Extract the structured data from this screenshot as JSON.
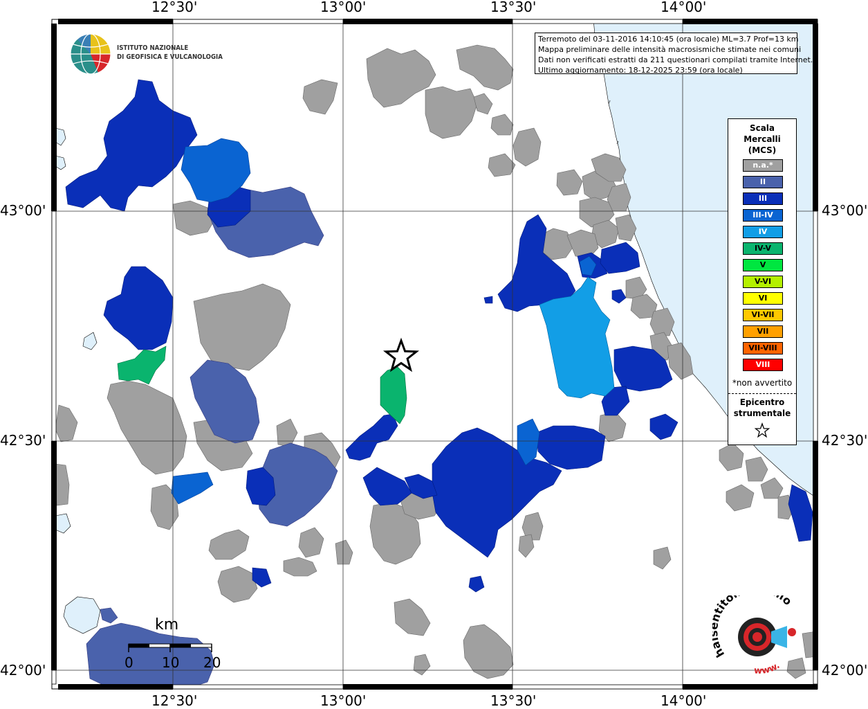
{
  "axes": {
    "lon_labels": [
      "12°30'",
      "13°00'",
      "13°30'",
      "14°00'"
    ],
    "lat_labels": [
      "43°00'",
      "42°30'",
      "42°00'"
    ]
  },
  "info": {
    "line1": "Terremoto del 03-11-2016 14:10:45 (ora locale) ML=3.7 Prof=13 km",
    "line2": "Mappa preliminare delle intensità macrosismiche stimate nei comuni",
    "line3": "Dati non verificati estratti da 211 questionari compilati tramite Internet.",
    "line4": "Ultimo aggiornamento: 18-12-2025 23:59 (ora locale)"
  },
  "logo": {
    "line1": "ISTITUTO NAZIONALE",
    "line2": "DI GEOFISICA E VULCANOLOGIA"
  },
  "legend": {
    "title_line1": "Scala",
    "title_line2": "Mercalli",
    "title_line3": "(MCS)",
    "items": [
      {
        "label": "n.a.*",
        "color": "#a0a0a0"
      },
      {
        "label": "II",
        "color": "#4a62ac"
      },
      {
        "label": "III",
        "color": "#0a2fb8"
      },
      {
        "label": "III-IV",
        "color": "#0a64d2"
      },
      {
        "label": "IV",
        "color": "#129ee6"
      },
      {
        "label": "IV-V",
        "color": "#0ab46e"
      },
      {
        "label": "V",
        "color": "#00e640"
      },
      {
        "label": "V-VI",
        "color": "#b4f000"
      },
      {
        "label": "VI",
        "color": "#ffff00"
      },
      {
        "label": "VI-VII",
        "color": "#ffc800"
      },
      {
        "label": "VII",
        "color": "#ffa000"
      },
      {
        "label": "VII-VIII",
        "color": "#ff6400"
      },
      {
        "label": "VIII",
        "color": "#ff0000"
      }
    ],
    "note": "*non avvertito",
    "epicenter_line1": "Epicentro",
    "epicenter_line2": "strumentale"
  },
  "scale": {
    "unit": "km",
    "ticks": [
      "0",
      "10",
      "20"
    ]
  },
  "brand": {
    "text": "haisentitoilterremoto.it",
    "url_text": "www."
  },
  "colors": {
    "sea": "#dff0fb",
    "na": "#a0a0a0",
    "ii": "#4a62ac",
    "iii": "#0a2fb8",
    "iii_iv": "#0a64d2",
    "iv": "#129ee6",
    "iv_v": "#0ab46e"
  }
}
